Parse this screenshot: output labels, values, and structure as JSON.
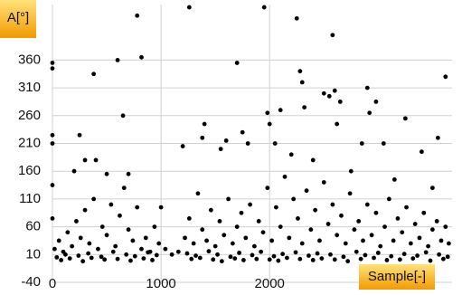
{
  "chart_data": {
    "type": "scatter",
    "x_label": "Sample[-]",
    "y_label": "A[°]",
    "color": "#000000",
    "grid": true,
    "xlim": [
      0,
      3680
    ],
    "ylim": [
      -40,
      460
    ],
    "xticks": [
      0,
      1000,
      2000
    ],
    "yticks": [
      -40,
      10,
      60,
      110,
      160,
      210,
      260,
      310,
      360
    ],
    "series": [
      {
        "name": "A",
        "color": "#000000",
        "x": [
          0,
          0,
          0,
          0,
          0,
          0,
          200,
          250,
          300,
          380,
          400,
          500,
          600,
          650,
          700,
          780,
          820,
          1000,
          1200,
          1260,
          1380,
          1400,
          1550,
          1600,
          1700,
          1750,
          1800,
          1950,
          1980,
          2000,
          2050,
          2100,
          2200,
          2250,
          2280,
          2300,
          2320,
          2400,
          2500,
          2550,
          2580,
          2600,
          2620,
          2650,
          2750,
          2850,
          2900,
          2920,
          2980,
          3050,
          3150,
          3250,
          3400,
          3500,
          3550,
          3620,
          20,
          60,
          100,
          140,
          180,
          220,
          260,
          300,
          340,
          380,
          420,
          460,
          500,
          540,
          580,
          620,
          660,
          700,
          740,
          780,
          820,
          860,
          900,
          940,
          980,
          1040,
          1100,
          1160,
          1220,
          1260,
          1300,
          1340,
          1380,
          1420,
          1460,
          1500,
          1540,
          1580,
          1620,
          1660,
          1700,
          1740,
          1780,
          1820,
          1860,
          1900,
          1940,
          1980,
          2020,
          2060,
          2100,
          2140,
          2180,
          2220,
          2260,
          2300,
          2340,
          2380,
          2420,
          2460,
          2500,
          2540,
          2580,
          2620,
          2660,
          2700,
          2740,
          2780,
          2820,
          2860,
          2900,
          2940,
          2980,
          3020,
          3060,
          3100,
          3140,
          3180,
          3220,
          3260,
          3300,
          3340,
          3380,
          3420,
          3460,
          3500,
          3540,
          3580,
          3620,
          3650,
          40,
          120,
          240,
          330,
          450,
          560,
          680,
          760,
          880,
          960,
          1240,
          1320,
          1440,
          1520,
          1640,
          1720,
          1840,
          1920,
          2040,
          2120,
          2240,
          2360,
          2440,
          2560,
          2680,
          2800,
          2880,
          3000,
          3120,
          3240,
          3360,
          3440,
          3560,
          3640,
          80,
          160,
          280,
          360,
          480,
          600,
          720,
          840,
          920,
          1280,
          1360,
          1480,
          1560,
          1680,
          1760,
          1880,
          2000,
          2080,
          2160,
          2280,
          2400,
          2480,
          2600,
          2720,
          2840,
          2960,
          3080,
          3200,
          3320,
          3480,
          3600
        ],
        "values": [
          355,
          345,
          225,
          210,
          135,
          75,
          160,
          225,
          180,
          335,
          180,
          155,
          360,
          260,
          155,
          440,
          365,
          95,
          205,
          455,
          220,
          245,
          200,
          215,
          355,
          230,
          210,
          455,
          265,
          245,
          210,
          270,
          190,
          435,
          340,
          320,
          275,
          180,
          300,
          295,
          405,
          305,
          245,
          285,
          160,
          210,
          310,
          265,
          285,
          210,
          145,
          255,
          195,
          130,
          220,
          330,
          20,
          35,
          15,
          50,
          25,
          70,
          40,
          90,
          30,
          110,
          20,
          60,
          45,
          100,
          25,
          80,
          130,
          55,
          35,
          95,
          20,
          40,
          15,
          60,
          30,
          20,
          10,
          15,
          40,
          75,
          30,
          120,
          55,
          35,
          90,
          25,
          70,
          45,
          110,
          30,
          60,
          85,
          40,
          100,
          25,
          70,
          50,
          130,
          35,
          95,
          60,
          150,
          40,
          110,
          75,
          30,
          125,
          55,
          90,
          35,
          140,
          65,
          100,
          45,
          80,
          30,
          120,
          55,
          70,
          35,
          100,
          45,
          85,
          25,
          60,
          110,
          35,
          75,
          50,
          95,
          30,
          65,
          40,
          85,
          25,
          55,
          70,
          35,
          60,
          30,
          5,
          10,
          8,
          12,
          6,
          15,
          10,
          7,
          14,
          9,
          12,
          8,
          16,
          10,
          6,
          13,
          9,
          15,
          7,
          11,
          14,
          8,
          12,
          10,
          6,
          15,
          9,
          13,
          7,
          11,
          8,
          14,
          10,
          6,
          0,
          3,
          -2,
          4,
          1,
          2,
          -1,
          3,
          0,
          2,
          4,
          1,
          -2,
          3,
          0,
          2,
          1,
          -1,
          4,
          2,
          0,
          3,
          1,
          -2,
          2,
          4,
          0,
          1,
          3,
          -1,
          2
        ]
      }
    ]
  }
}
